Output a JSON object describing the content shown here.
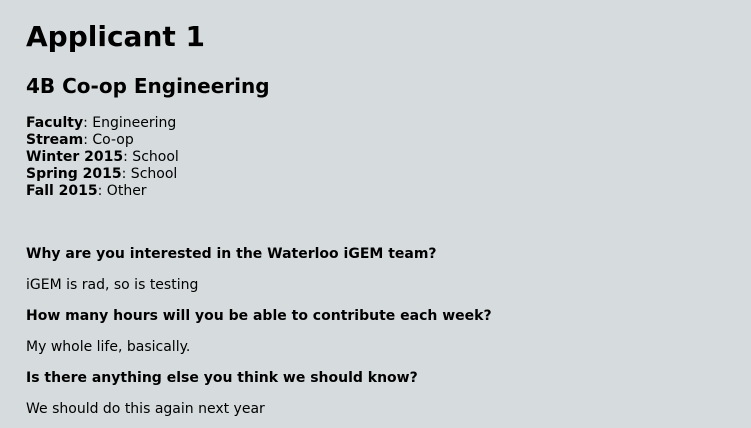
{
  "title": "Applicant 1",
  "subtitle": "4B Co-op Engineering",
  "facts": [
    {
      "label": "Faculty",
      "value": ": Engineering"
    },
    {
      "label": "Stream",
      "value": ": Co-op"
    },
    {
      "label": "Winter 2015",
      "value": ": School"
    },
    {
      "label": "Spring 2015",
      "value": ": School"
    },
    {
      "label": "Fall 2015",
      "value": ": Other"
    }
  ],
  "questions": [
    {
      "question": "Why are you interested in the Waterloo iGEM team?",
      "answer": "iGEM is rad, so is testing"
    },
    {
      "question": "How many hours will you be able to contribute each week?",
      "answer": "My whole life, basically."
    },
    {
      "question": "Is there anything else you think we should know?",
      "answer": "We should do this again next year"
    }
  ]
}
